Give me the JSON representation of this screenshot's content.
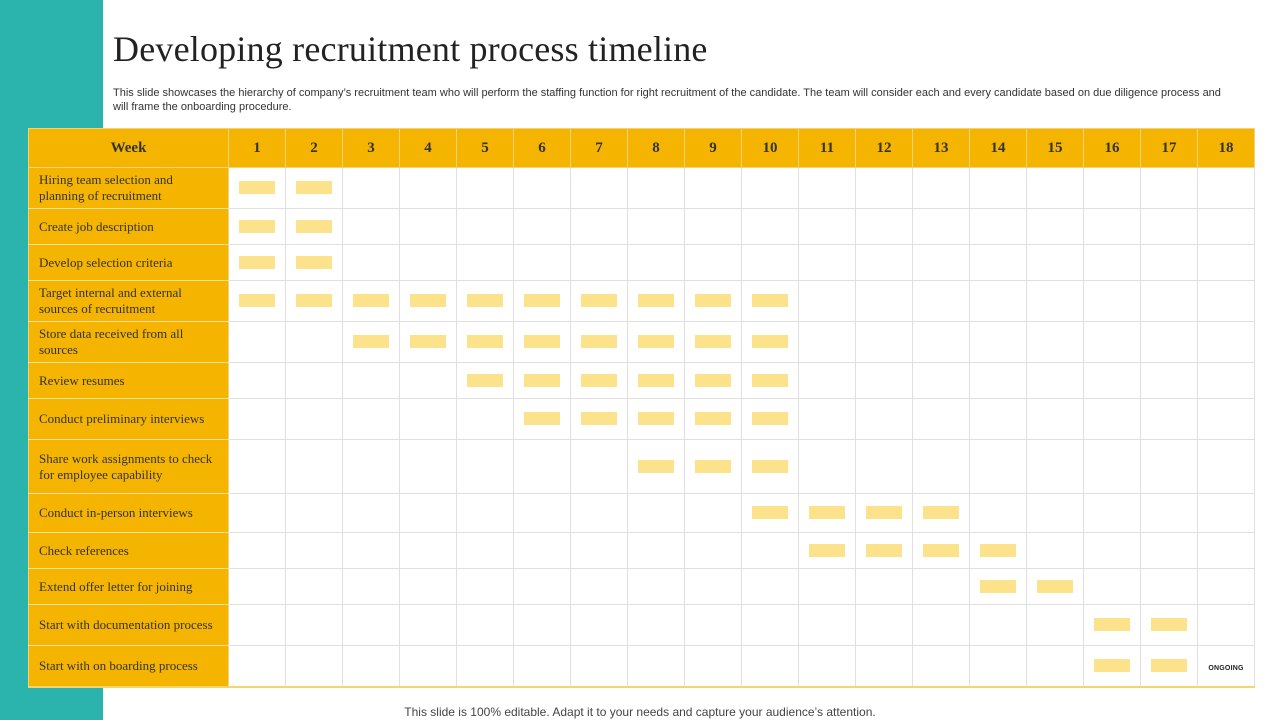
{
  "title": "Developing recruitment process timeline",
  "subtitle": "This slide showcases the hierarchy of company’s recruitment team who will perform the staffing function for right recruitment of the candidate. The team will consider each and every candidate based on due diligence process and will frame the onboarding procedure.",
  "table": {
    "week_header": "Week",
    "weeks": [
      "1",
      "2",
      "3",
      "4",
      "5",
      "6",
      "7",
      "8",
      "9",
      "10",
      "11",
      "12",
      "13",
      "14",
      "15",
      "16",
      "17",
      "18"
    ],
    "rows": [
      {
        "task": "Hiring team selection and planning of recruitment",
        "active_weeks": [
          1,
          2
        ]
      },
      {
        "task": "Create job description",
        "active_weeks": [
          1,
          2
        ]
      },
      {
        "task": "Develop selection criteria",
        "active_weeks": [
          1,
          2
        ]
      },
      {
        "task": "Target internal and external sources of recruitment",
        "active_weeks": [
          1,
          2,
          3,
          4,
          5,
          6,
          7,
          8,
          9,
          10
        ]
      },
      {
        "task": "Store data received from all sources",
        "active_weeks": [
          3,
          4,
          5,
          6,
          7,
          8,
          9,
          10
        ]
      },
      {
        "task": "Review resumes",
        "active_weeks": [
          5,
          6,
          7,
          8,
          9,
          10
        ]
      },
      {
        "task": "Conduct preliminary interviews",
        "active_weeks": [
          6,
          7,
          8,
          9,
          10
        ]
      },
      {
        "task": "Share work assignments to check for employee capability",
        "active_weeks": [
          8,
          9,
          10
        ]
      },
      {
        "task": "Conduct in-person interviews",
        "active_weeks": [
          10,
          11,
          12,
          13
        ]
      },
      {
        "task": "Check references",
        "active_weeks": [
          11,
          12,
          13,
          14
        ]
      },
      {
        "task": "Extend offer letter for joining",
        "active_weeks": [
          14,
          15
        ]
      },
      {
        "task": "Start with documentation process",
        "active_weeks": [
          16,
          17
        ]
      },
      {
        "task": "Start with on boarding process",
        "active_weeks": [
          16,
          17
        ],
        "status": {
          "week": 18,
          "label": "ONGOING"
        }
      }
    ]
  },
  "footer": "This slide is 100% editable. Adapt it to your needs and capture your audience’s attention.",
  "colors": {
    "accent": "#f5b400",
    "bar": "#fce28b",
    "side": "#2bb3ae"
  }
}
